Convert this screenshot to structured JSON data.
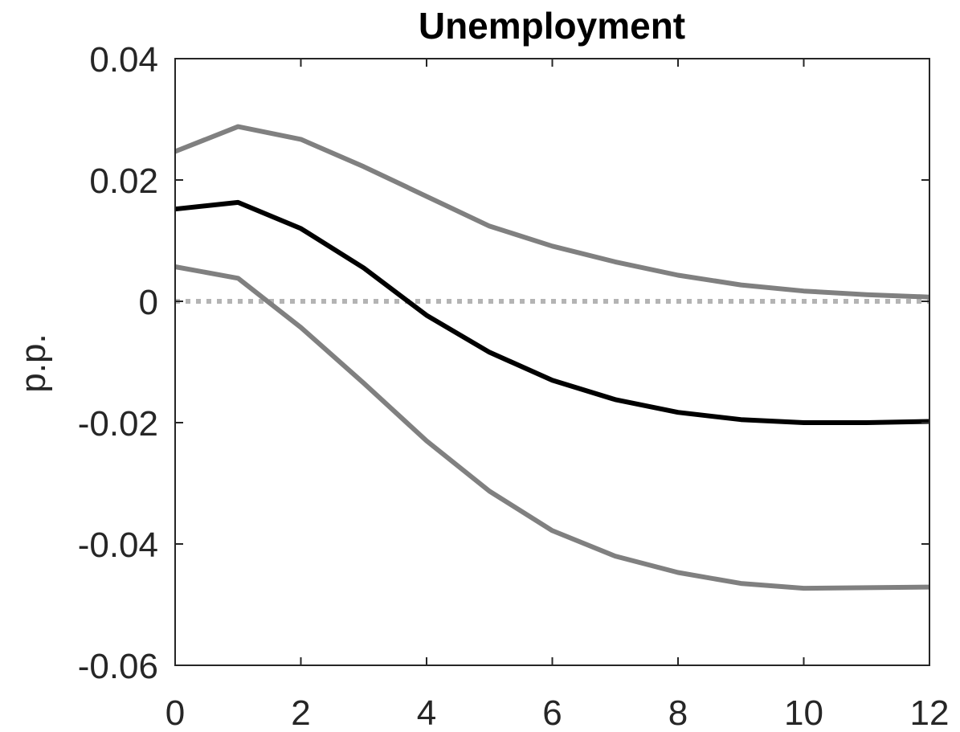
{
  "chart_data": {
    "type": "line",
    "title": "Unemployment",
    "xlabel": "",
    "ylabel": "p.p.",
    "xlim": [
      0,
      12
    ],
    "ylim": [
      -0.06,
      0.04
    ],
    "x_ticks": [
      0,
      2,
      4,
      6,
      8,
      10,
      12
    ],
    "y_ticks": [
      -0.06,
      -0.04,
      -0.02,
      0,
      0.02,
      0.04
    ],
    "x_tick_labels": [
      "0",
      "2",
      "4",
      "6",
      "8",
      "10",
      "12"
    ],
    "y_tick_labels": [
      "-0.06",
      "-0.04",
      "-0.02",
      "0",
      "0.02",
      "0.04"
    ],
    "grid": false,
    "legend": "none",
    "x": [
      0,
      1,
      2,
      3,
      4,
      5,
      6,
      7,
      8,
      9,
      10,
      11,
      12
    ],
    "series": [
      {
        "role": "upper-band",
        "color": "#808080",
        "values": [
          0.0247,
          0.0288,
          0.0267,
          0.0222,
          0.0173,
          0.0124,
          0.0091,
          0.0065,
          0.0043,
          0.0027,
          0.0017,
          0.0011,
          0.0007
        ]
      },
      {
        "role": "point-estimate",
        "color": "#000000",
        "values": [
          0.0152,
          0.0163,
          0.012,
          0.0055,
          -0.0023,
          -0.0084,
          -0.013,
          -0.0162,
          -0.0183,
          -0.0195,
          -0.02,
          -0.02,
          -0.0198
        ]
      },
      {
        "role": "lower-band",
        "color": "#808080",
        "values": [
          0.0057,
          0.0038,
          -0.0043,
          -0.0135,
          -0.023,
          -0.0313,
          -0.0378,
          -0.042,
          -0.0447,
          -0.0465,
          -0.0473,
          -0.0472,
          -0.0471
        ]
      }
    ],
    "reference_line": {
      "y": 0,
      "style": "dotted",
      "color": "#b4b4b4"
    }
  }
}
